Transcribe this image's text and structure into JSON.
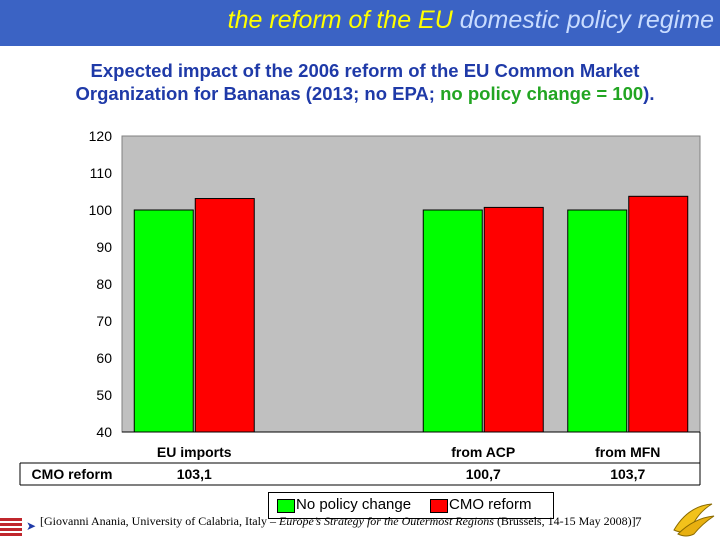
{
  "header": {
    "title_part1": "the reform of the EU",
    "title_part2": " domestic policy regime",
    "title_color": "#ffff00",
    "band_color": "#3b63c4"
  },
  "chart_title": {
    "line1": "Expected impact of the 2006 reform of the EU Common Market",
    "line2_part1": "Organization for Bananas (2013; no EPA; ",
    "line2_part2": "no policy change = 100",
    "line2_part3": ")."
  },
  "chart_data": {
    "type": "bar",
    "categories": [
      "EU imports",
      "",
      "from ACP",
      "from MFN"
    ],
    "series": [
      {
        "name": "No policy change",
        "color": "#00ff00",
        "values": [
          100,
          null,
          100,
          100
        ]
      },
      {
        "name": "CMO reform",
        "color": "#ff0000",
        "values": [
          103.1,
          null,
          100.7,
          103.7
        ]
      }
    ],
    "ylim": [
      40,
      120
    ],
    "yticks": [
      "40",
      "50",
      "60",
      "70",
      "80",
      "90",
      "100",
      "110",
      "120"
    ],
    "plot_background": "#c0c0c0",
    "grid": false,
    "legend_position": "bottom-center",
    "table": {
      "row_label": "CMO reform",
      "values": [
        "103,1",
        "",
        "100,7",
        "103,7"
      ]
    }
  },
  "footer": {
    "citation_prefix": "[Giovanni Anania, University of Calabria, Italy – ",
    "citation_italic": "Europe’s Strategy for the Outermost Regions",
    "citation_suffix": " (Brussels, 14-15 May 2008)]",
    "page_number": "7"
  },
  "icons": {
    "arrow": "arrow-right-icon",
    "logo": "university-logo-icon",
    "banana": "banana-icon"
  }
}
